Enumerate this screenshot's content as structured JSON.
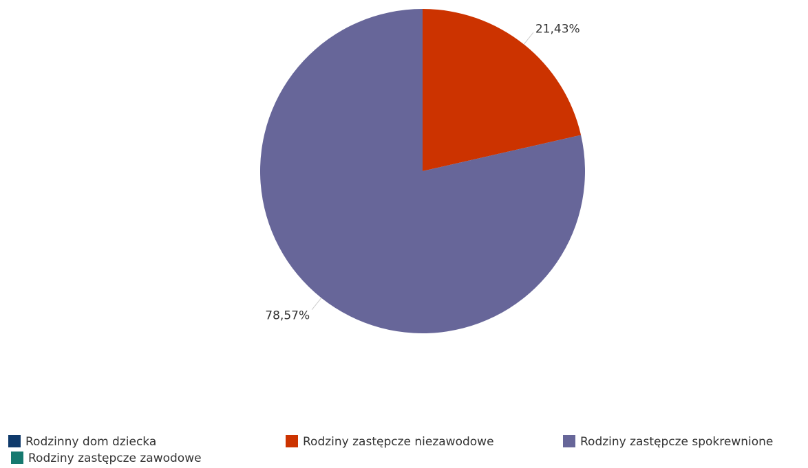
{
  "chart_data": {
    "type": "pie",
    "title": "",
    "series": [
      {
        "name": "Rodzinny dom dziecka",
        "value": 0,
        "label": "",
        "color": "#0f3a6b"
      },
      {
        "name": "Rodziny zastępcze niezawodowe",
        "value": 21.43,
        "label": "21,43%",
        "color": "#cc3300"
      },
      {
        "name": "Rodziny zastępcze spokrewnione",
        "value": 78.57,
        "label": "78,57%",
        "color": "#676699"
      },
      {
        "name": "Rodziny zastępcze zawodowe",
        "value": 0,
        "label": "",
        "color": "#16796f"
      }
    ],
    "legend_position": "bottom",
    "start_angle_deg": 0,
    "direction": "clockwise"
  }
}
